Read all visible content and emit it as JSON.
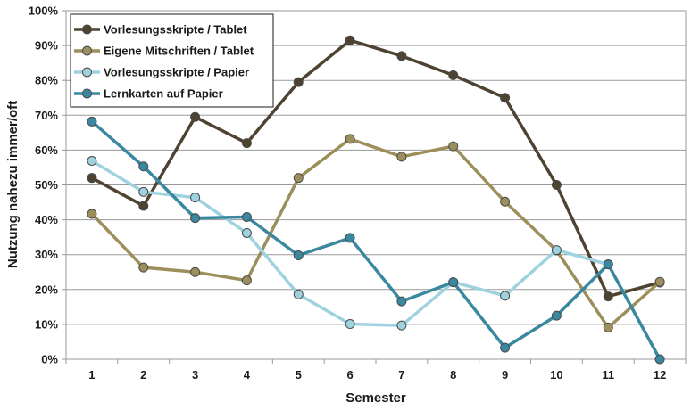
{
  "chart_data": {
    "type": "line",
    "xlabel": "Semester",
    "ylabel": "Nutzung nahezu immer/oft",
    "categories": [
      "1",
      "2",
      "3",
      "4",
      "5",
      "6",
      "7",
      "8",
      "9",
      "10",
      "11",
      "12"
    ],
    "ylim": [
      0,
      100
    ],
    "yticks": [
      "0%",
      "10%",
      "20%",
      "30%",
      "40%",
      "50%",
      "60%",
      "70%",
      "80%",
      "90%",
      "100%"
    ],
    "grid": "horizontal",
    "legend": "top-left",
    "series": [
      {
        "name": "Vorlesungsskripte / Tablet",
        "color": "#4d4330",
        "values": [
          52,
          44,
          69.5,
          62,
          79.5,
          91.5,
          87,
          81.5,
          75,
          50,
          18,
          22
        ]
      },
      {
        "name": "Eigene Mitschriften / Tablet",
        "color": "#9c8f5c",
        "values": [
          41.7,
          26.3,
          25,
          22.6,
          52,
          63.2,
          58.1,
          61.1,
          45.2,
          31.2,
          9.1,
          22.2
        ]
      },
      {
        "name": "Vorlesungsskripte / Papier",
        "color": "#9fd2df",
        "values": [
          56.9,
          48,
          46.4,
          36.2,
          18.6,
          10.1,
          9.7,
          22.1,
          18.2,
          31.3,
          27.2,
          null
        ]
      },
      {
        "name": "Lernkarten auf Papier",
        "color": "#3a87a0",
        "values": [
          68.2,
          55.3,
          40.5,
          40.8,
          29.8,
          34.8,
          16.6,
          22.1,
          3.3,
          12.5,
          27.2,
          0
        ]
      }
    ]
  }
}
